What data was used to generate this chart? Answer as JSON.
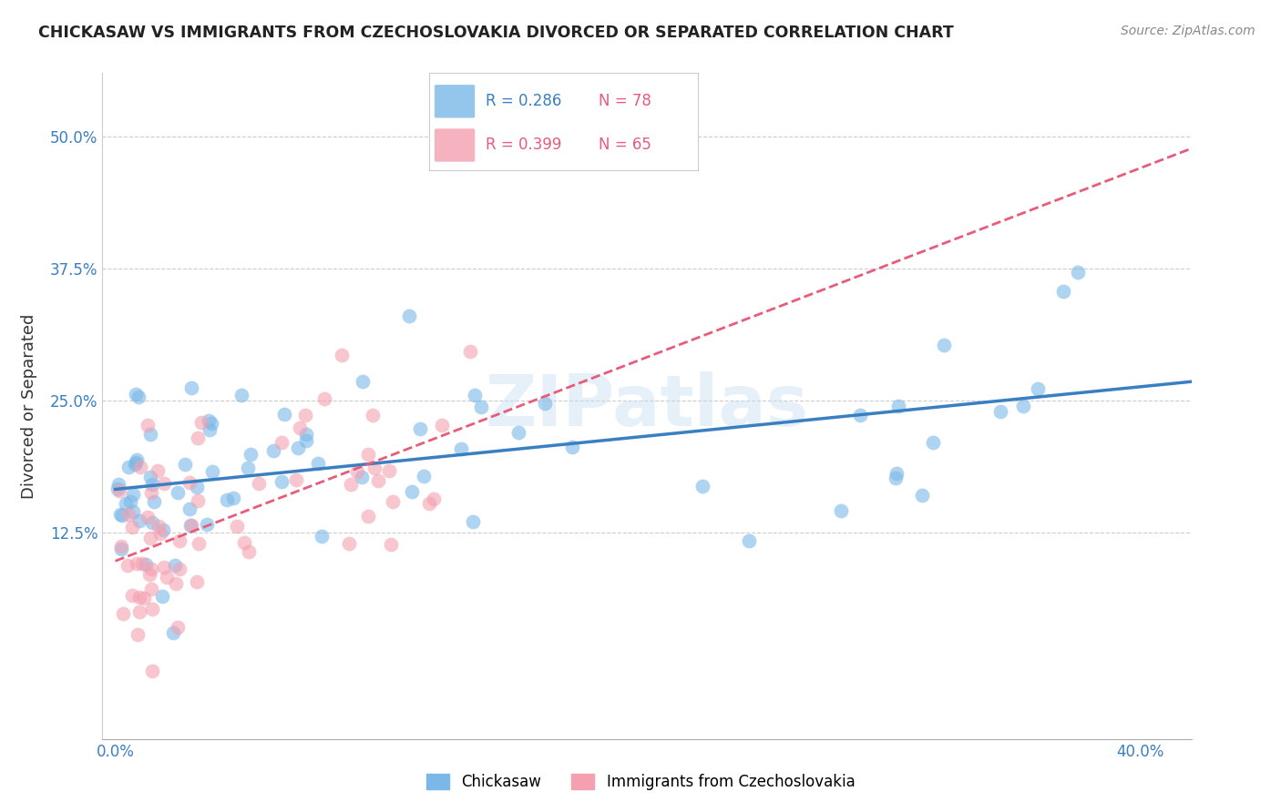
{
  "title": "CHICKASAW VS IMMIGRANTS FROM CZECHOSLOVAKIA DIVORCED OR SEPARATED CORRELATION CHART",
  "source": "Source: ZipAtlas.com",
  "ylabel": "Divorced or Separated",
  "xlim": [
    -0.005,
    0.42
  ],
  "ylim": [
    -0.07,
    0.56
  ],
  "xticks": [
    0.0,
    0.1,
    0.2,
    0.3,
    0.4
  ],
  "xticklabels": [
    "0.0%",
    "",
    "",
    "",
    "40.0%"
  ],
  "yticks": [
    0.125,
    0.25,
    0.375,
    0.5
  ],
  "yticklabels": [
    "12.5%",
    "25.0%",
    "37.5%",
    "50.0%"
  ],
  "legend_r1": "R = 0.286",
  "legend_n1": "N = 78",
  "legend_r2": "R = 0.399",
  "legend_n2": "N = 65",
  "color_blue": "#7ab8e8",
  "color_pink": "#f4a0b0",
  "line_color_blue": "#3a7fc1",
  "line_color_pink": "#e85c7a",
  "watermark": "ZIPatlas",
  "label1": "Chickasaw",
  "label2": "Immigrants from Czechoslovakia"
}
